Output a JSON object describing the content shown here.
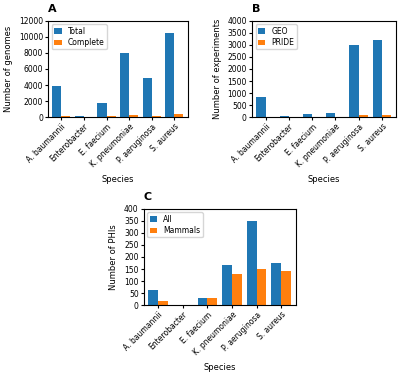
{
  "chart_data": [
    {
      "type": "bar",
      "title": "A",
      "categories": [
        "A. baumannii",
        "Enterobacter",
        "E. faecium",
        "K. pneumoniae",
        "P. aeruginosa",
        "S. aureus"
      ],
      "series": [
        {
          "name": "Total",
          "values": [
            3900,
            150,
            1800,
            8000,
            4900,
            10500
          ]
        },
        {
          "name": "Complete",
          "values": [
            200,
            30,
            150,
            350,
            200,
            400
          ]
        }
      ],
      "xlabel": "Species",
      "ylabel": "Number of genomes",
      "ylim": [
        0,
        12000
      ],
      "yticks": [
        0,
        2000,
        4000,
        6000,
        8000,
        10000,
        12000
      ],
      "legend": "upper left",
      "grid": false
    },
    {
      "type": "bar",
      "title": "B",
      "categories": [
        "A. baumannii",
        "Enterobacter",
        "E. faecium",
        "K. pneumoniae",
        "P. aeruginosa",
        "S. aureus"
      ],
      "series": [
        {
          "name": "GEO",
          "values": [
            850,
            50,
            150,
            200,
            3000,
            3200
          ]
        },
        {
          "name": "PRIDE",
          "values": [
            30,
            10,
            20,
            30,
            80,
            100
          ]
        }
      ],
      "xlabel": "Species",
      "ylabel": "Number of experiments",
      "ylim": [
        0,
        4000
      ],
      "yticks": [
        0,
        500,
        1000,
        1500,
        2000,
        2500,
        3000,
        3500,
        4000
      ],
      "legend": "upper left",
      "grid": false
    },
    {
      "type": "bar",
      "title": "C",
      "categories": [
        "A. baumannii",
        "Enterobacter",
        "E. faecium",
        "K. pneumoniae",
        "P. aeruginosa",
        "S. aureus"
      ],
      "series": [
        {
          "name": "All",
          "values": [
            65,
            0,
            30,
            165,
            350,
            175
          ]
        },
        {
          "name": "Mammals",
          "values": [
            20,
            0,
            30,
            130,
            150,
            140
          ]
        }
      ],
      "xlabel": "Species",
      "ylabel": "Number of PHIs",
      "ylim": [
        0,
        400
      ],
      "yticks": [
        0,
        50,
        100,
        150,
        200,
        250,
        300,
        350,
        400
      ],
      "legend": "upper left",
      "grid": false
    }
  ]
}
